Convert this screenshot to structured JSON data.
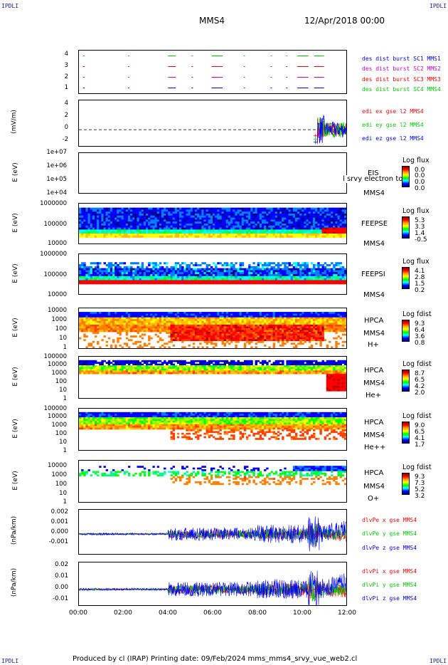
{
  "corners": {
    "tl": "IPDLI",
    "tr": "IPDLI",
    "bl": "IPDLI",
    "br": "IPDLI"
  },
  "header": {
    "spacecraft": "MMS4",
    "date": "12/Apr/2018 00:00"
  },
  "footer": {
    "text": "Produced by cl (IRAP)   Printing date: 09/Feb/2024   mms_mms4_srvy_vue_web2.cl"
  },
  "colors": {
    "blue": "#0000ff",
    "red": "#ff0000",
    "green": "#00cc00",
    "magenta": "#cc00cc"
  },
  "chart_data": [
    {
      "id": "p1",
      "type": "scatter",
      "yticks": [
        "4",
        "3",
        "2",
        "1"
      ],
      "ylim": [
        0.5,
        4.5
      ],
      "series": [
        {
          "name": "des dist burst SC1 MMS1",
          "color": "#0000ff",
          "y": 1
        },
        {
          "name": "des dist burst SC2 MMS2",
          "color": "#cc00cc",
          "y": 2
        },
        {
          "name": "des dist burst SC3 MMS3",
          "color": "#ff0000",
          "y": 3
        },
        {
          "name": "des dist burst SC4 MMS4",
          "color": "#00cc00",
          "y": 4
        }
      ],
      "burst_intervals_hours": [
        [
          0.18,
          0.26
        ],
        [
          2.2,
          2.26
        ],
        [
          4.0,
          4.35
        ],
        [
          5.05,
          5.12
        ],
        [
          5.95,
          6.45
        ],
        [
          7.4,
          7.45
        ],
        [
          8.6,
          8.66
        ],
        [
          9.3,
          9.36
        ],
        [
          9.8,
          10.3
        ],
        [
          10.55,
          11.0
        ]
      ]
    },
    {
      "id": "p2",
      "type": "line",
      "ylabel": "(mV/m)",
      "yticks": [
        "4",
        "2",
        "0",
        "-2"
      ],
      "ylim": [
        -2.5,
        4.5
      ],
      "series": [
        {
          "name": "edi ex gse l2 MMS4",
          "color": "#ff0000"
        },
        {
          "name": "edi ey gse l2 MMS4",
          "color": "#00cc00"
        },
        {
          "name": "edi ez gse l2 MMS4",
          "color": "#0000ff"
        }
      ],
      "data_start_hours": 10.7
    },
    {
      "id": "p3",
      "type": "heatmap",
      "ylabel": "E (eV)",
      "yticks": [
        "1e+07",
        "1e+06",
        "1e+05",
        "1e+04"
      ],
      "labels": [
        "EIS",
        "MMS4"
      ],
      "overlay_text": "l srvy electron to",
      "colorbar": {
        "title": "Log flux",
        "ticks": [
          "0.0",
          "0.0",
          "0.0",
          "0.0"
        ]
      }
    },
    {
      "id": "p4",
      "type": "heatmap",
      "ylabel": "E (eV)",
      "yticks": [
        "1000000",
        "100000",
        "10000"
      ],
      "labels": [
        "FEEPSE",
        "MMS4"
      ],
      "colorbar": {
        "title": "Log flux",
        "ticks": [
          "5.3",
          "3.3",
          "1.4",
          "-0.5"
        ]
      }
    },
    {
      "id": "p5",
      "type": "heatmap",
      "ylabel": "E (eV)",
      "yticks": [
        "1000000",
        "100000",
        "10000"
      ],
      "labels": [
        "FEEPSI",
        "MMS4"
      ],
      "colorbar": {
        "title": "Log flux",
        "ticks": [
          "4.1",
          "2.8",
          "1.5",
          "0.2"
        ]
      }
    },
    {
      "id": "p6",
      "type": "heatmap",
      "ylabel": "E (eV)",
      "yticks": [
        "10000",
        "1000",
        "100",
        "10",
        "1"
      ],
      "labels": [
        "HPCA",
        "MMS4",
        "H+"
      ],
      "colorbar": {
        "title": "Log fdist",
        "ticks": [
          "9.3",
          "6.4",
          "3.6",
          "0.8"
        ]
      }
    },
    {
      "id": "p7",
      "type": "heatmap",
      "ylabel": "E (eV)",
      "yticks": [
        "100000",
        "10000",
        "1000",
        "100",
        "10",
        "1"
      ],
      "labels": [
        "HPCA",
        "MMS4",
        "He+"
      ],
      "colorbar": {
        "title": "Log fdist",
        "ticks": [
          "8.7",
          "6.5",
          "4.2",
          "2.0"
        ]
      }
    },
    {
      "id": "p8",
      "type": "heatmap",
      "ylabel": "E (eV)",
      "yticks": [
        "100000",
        "10000",
        "1000",
        "100",
        "10",
        "1"
      ],
      "labels": [
        "HPCA",
        "MMS4",
        "He++"
      ],
      "colorbar": {
        "title": "Log fdist",
        "ticks": [
          "9.0",
          "6.5",
          "4.1",
          "1.7"
        ]
      }
    },
    {
      "id": "p9",
      "type": "heatmap",
      "ylabel": "E (eV)",
      "yticks": [
        "10000",
        "1000",
        "100",
        "10",
        "1"
      ],
      "labels": [
        "HPCA",
        "MMS4",
        "O+"
      ],
      "colorbar": {
        "title": "Log fdist",
        "ticks": [
          "9.3",
          "7.3",
          "5.2",
          "3.2"
        ]
      }
    },
    {
      "id": "p10",
      "type": "line",
      "ylabel": "(nPa/km)",
      "yticks": [
        "0.002",
        "0.001",
        "0.000",
        "-0.001"
      ],
      "ylim": [
        -0.0018,
        0.0022
      ],
      "series": [
        {
          "name": "dlvPe x gse MMS4",
          "color": "#ff0000"
        },
        {
          "name": "dlvPe y gse MMS4",
          "color": "#00cc00"
        },
        {
          "name": "dlvPe z gse MMS4",
          "color": "#0000ff"
        }
      ]
    },
    {
      "id": "p11",
      "type": "line",
      "ylabel": "(nPa/km)",
      "yticks": [
        "0.02",
        "0.01",
        "0.00",
        "-0.01"
      ],
      "ylim": [
        -0.013,
        0.022
      ],
      "series": [
        {
          "name": "dlvPi x gse MMS4",
          "color": "#ff0000"
        },
        {
          "name": "dlvPi y gse MMS4",
          "color": "#00cc00"
        },
        {
          "name": "dlvPi z gse MMS4",
          "color": "#0000ff"
        }
      ]
    }
  ],
  "xaxis": {
    "ticks": [
      "00:00",
      "02:00",
      "04:00",
      "06:00",
      "08:00",
      "10:00",
      "12:00"
    ],
    "range_hours": [
      0,
      12
    ]
  }
}
